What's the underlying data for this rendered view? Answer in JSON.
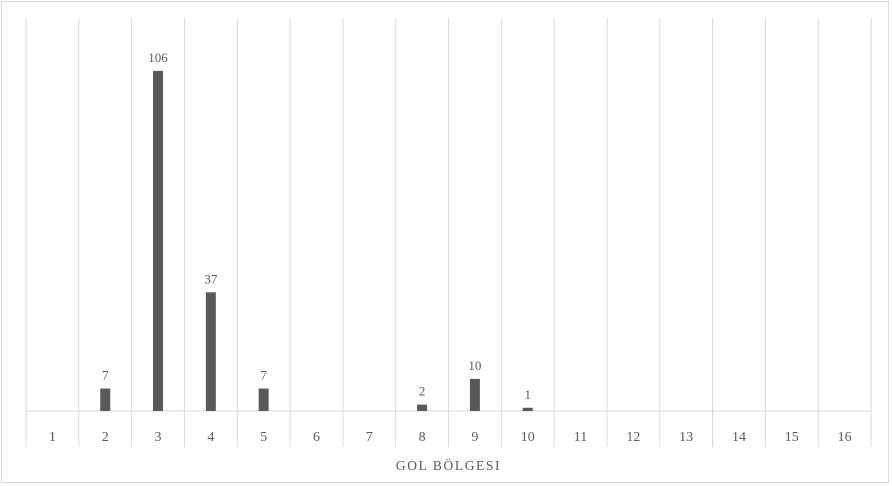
{
  "chart_data": {
    "type": "bar",
    "title": "",
    "xlabel": "GOL BÖLGESI",
    "ylabel": "",
    "categories": [
      "1",
      "2",
      "3",
      "4",
      "5",
      "6",
      "7",
      "8",
      "9",
      "10",
      "11",
      "12",
      "13",
      "14",
      "15",
      "16"
    ],
    "values": [
      null,
      7,
      106,
      37,
      7,
      null,
      null,
      2,
      10,
      1,
      null,
      null,
      null,
      null,
      null,
      null
    ],
    "ylim": [
      0,
      120
    ],
    "grid": "vertical",
    "legend": "none",
    "colors": {
      "bar": "#595959",
      "grid": "#d9d9d9",
      "text": "#595959",
      "frame": "#d9d9d9"
    }
  }
}
